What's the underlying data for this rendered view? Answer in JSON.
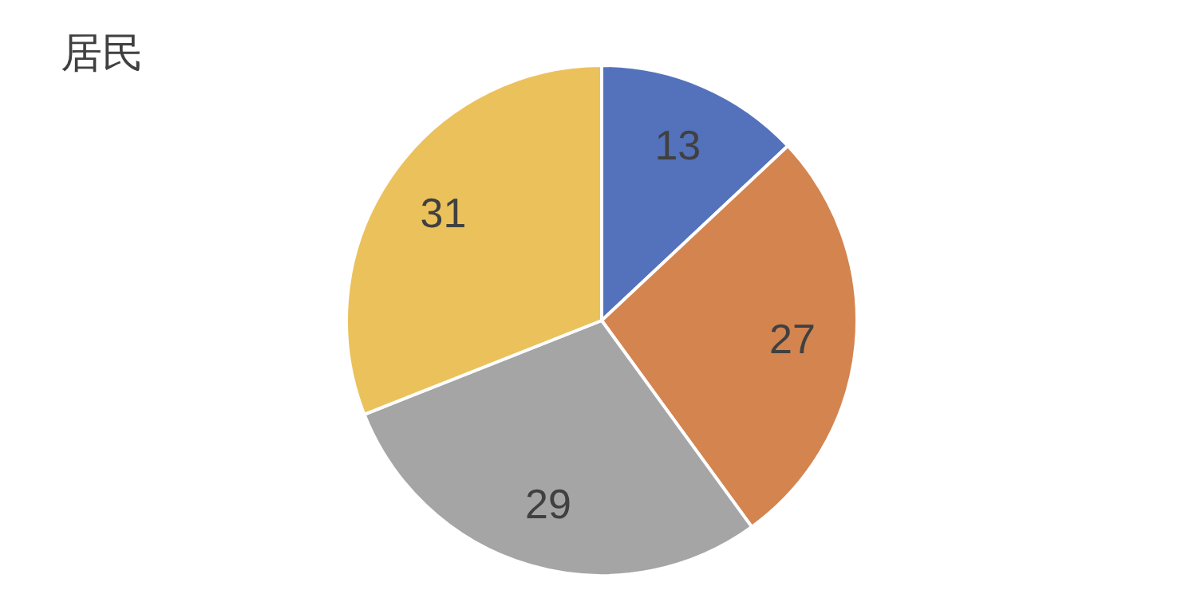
{
  "chart_data": {
    "type": "pie",
    "title": "居民",
    "categories": [
      null,
      null,
      null,
      null
    ],
    "values": [
      13,
      27,
      29,
      31
    ],
    "colors": [
      "#5472bb",
      "#d3844f",
      "#a5a5a5",
      "#ebc15c"
    ],
    "data_labels": true
  }
}
